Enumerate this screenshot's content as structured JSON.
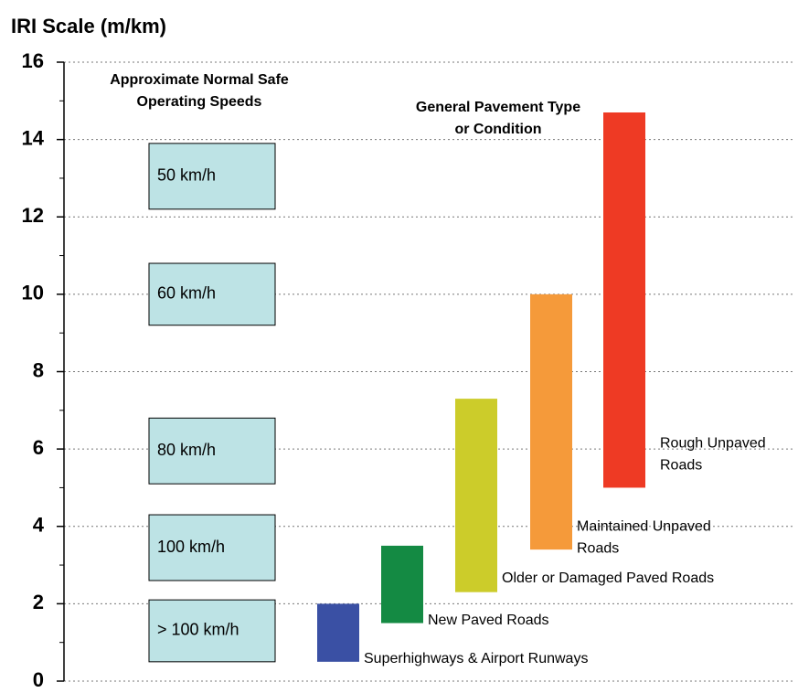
{
  "chart_data": {
    "type": "range_bar",
    "title": "IRI Scale (m/km)",
    "ylim": [
      0,
      16
    ],
    "yticks": [
      0,
      2,
      4,
      6,
      8,
      10,
      12,
      14,
      16
    ],
    "minor_yticks": [
      1,
      3,
      5,
      7,
      9,
      11,
      13,
      15
    ],
    "grid": true,
    "annotations": [
      [
        "Approximate Normal Safe",
        "Operating Speeds"
      ],
      [
        "General Pavement Type",
        "or Condition"
      ]
    ],
    "series": [
      {
        "name": "speeds",
        "color": "#bde3e5",
        "labels": [
          "50 km/h",
          "60 km/h",
          "80 km/h",
          "100 km/h",
          "> 100 km/h"
        ],
        "low": [
          12.2,
          9.2,
          5.1,
          2.6,
          0.5
        ],
        "high": [
          13.9,
          10.8,
          6.8,
          4.3,
          2.1
        ]
      },
      {
        "name": "pavement",
        "colors": [
          "#3a50a4",
          "#148a43",
          "#cccc2a",
          "#f59a3a",
          "#ee3a24"
        ],
        "labels": [
          [
            "Superhighways & Airport Runways"
          ],
          [
            "New Paved Roads"
          ],
          [
            "Older or Damaged Paved Roads"
          ],
          [
            "Maintained Unpaved",
            "Roads"
          ],
          [
            "Rough Unpaved",
            "Roads"
          ]
        ],
        "low": [
          0.5,
          1.5,
          2.3,
          3.4,
          5.0
        ],
        "high": [
          2.0,
          3.5,
          7.3,
          10.0,
          14.7
        ]
      }
    ]
  }
}
